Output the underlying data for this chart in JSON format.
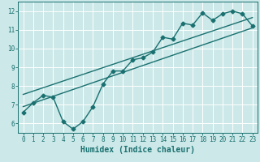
{
  "xlabel": "Humidex (Indice chaleur)",
  "ylabel": "",
  "bg_color": "#cce8e8",
  "grid_color": "#ffffff",
  "line_color": "#1a7070",
  "xlim": [
    -0.5,
    23.5
  ],
  "ylim": [
    5.5,
    12.5
  ],
  "xticks": [
    0,
    1,
    2,
    3,
    4,
    5,
    6,
    7,
    8,
    9,
    10,
    11,
    12,
    13,
    14,
    15,
    16,
    17,
    18,
    19,
    20,
    21,
    22,
    23
  ],
  "yticks": [
    6,
    7,
    8,
    9,
    10,
    11,
    12
  ],
  "scatter_x": [
    0,
    1,
    2,
    3,
    4,
    5,
    6,
    7,
    8,
    9,
    10,
    11,
    12,
    13,
    14,
    15,
    16,
    17,
    18,
    19,
    20,
    21,
    22,
    23
  ],
  "scatter_y": [
    6.6,
    7.1,
    7.5,
    7.4,
    6.1,
    5.7,
    6.1,
    6.9,
    8.1,
    8.8,
    8.8,
    9.4,
    9.5,
    9.8,
    10.6,
    10.5,
    11.35,
    11.25,
    11.9,
    11.5,
    11.85,
    12.0,
    11.85,
    11.2
  ],
  "line1_x": [
    0,
    23
  ],
  "line1_y": [
    6.9,
    11.1
  ],
  "line2_x": [
    0,
    23
  ],
  "line2_y": [
    7.55,
    11.65
  ],
  "marker": "D",
  "marker_size": 2.5,
  "line_width": 1.0,
  "font_family": "monospace",
  "xlabel_fontsize": 7,
  "tick_fontsize": 5.5
}
